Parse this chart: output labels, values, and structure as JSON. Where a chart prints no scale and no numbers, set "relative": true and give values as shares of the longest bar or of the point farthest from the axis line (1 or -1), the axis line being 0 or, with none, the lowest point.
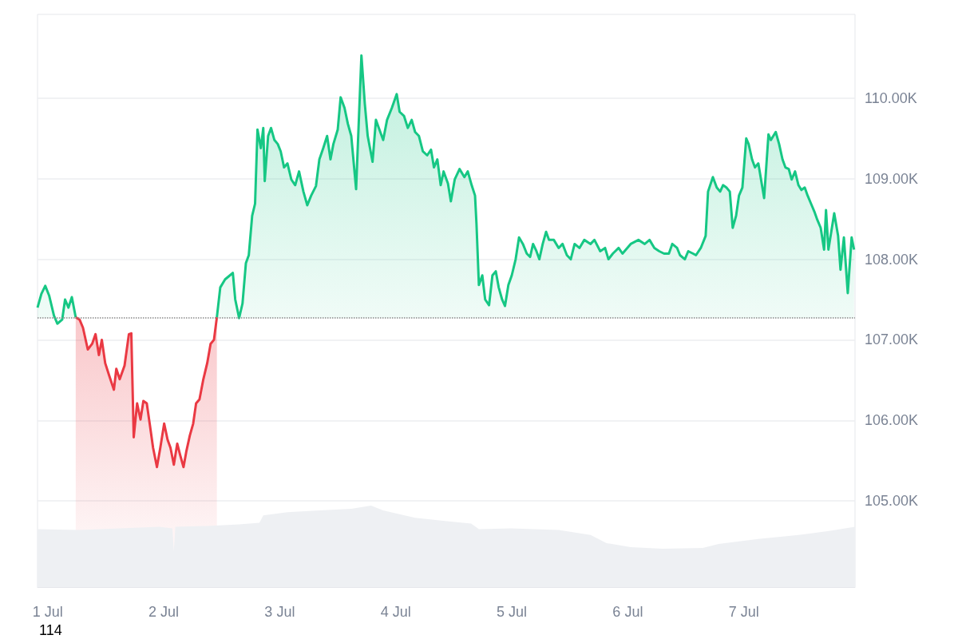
{
  "chart_data": [
    {
      "type": "area",
      "marker": "none",
      "grid": "y",
      "x": [
        "--06-30T21:54",
        "--06-30T22:42",
        "--06-30T23:30",
        "--07-01T00:18",
        "--07-01T01:18",
        "--07-01T02:00",
        "--07-01T03:00",
        "--07-01T03:36",
        "--07-01T04:18",
        "--07-01T05:00",
        "--07-01T05:48",
        "--07-01T06:36",
        "--07-01T07:18",
        "--07-01T08:18",
        "--07-01T09:12",
        "--07-01T09:54",
        "--07-01T10:36",
        "--07-01T11:12",
        "--07-01T11:54",
        "--07-01T12:42",
        "--07-01T13:42",
        "--07-01T14:12",
        "--07-01T14:54",
        "--07-01T15:54",
        "--07-01T16:48",
        "--07-01T17:18",
        "--07-01T17:48",
        "--07-01T18:30",
        "--07-01T19:12",
        "--07-01T19:48",
        "--07-01T20:30",
        "--07-01T21:06",
        "--07-01T21:48",
        "--07-01T22:36",
        "--07-01T23:18",
        "--07-02T00:06",
        "--07-02T00:48",
        "--07-02T01:24",
        "--07-02T02:06",
        "--07-02T02:48",
        "--07-02T03:24",
        "--07-02T04:06",
        "--07-02T04:42",
        "--07-02T05:24",
        "--07-02T06:06",
        "--07-02T06:42",
        "--07-02T07:24",
        "--07-02T08:12",
        "--07-02T09:00",
        "--07-02T09:42",
        "--07-02T10:24",
        "--07-02T11:00",
        "--07-02T11:42",
        "--07-02T12:42",
        "--07-02T13:30",
        "--07-02T14:18",
        "--07-02T14:48",
        "--07-02T15:36",
        "--07-02T16:18",
        "--07-02T17:00",
        "--07-02T17:36",
        "--07-02T18:18",
        "--07-02T18:54",
        "--07-02T19:24",
        "--07-02T20:06",
        "--07-02T20:36",
        "--07-02T20:54",
        "--07-02T21:36",
        "--07-02T22:12",
        "--07-02T22:54",
        "--07-02T23:36",
        "--07-03T00:12",
        "--07-03T00:54",
        "--07-03T01:36",
        "--07-03T02:24",
        "--07-03T03:12",
        "--07-03T04:00",
        "--07-03T04:54",
        "--07-03T05:42",
        "--07-03T06:30",
        "--07-03T07:30",
        "--07-03T08:12",
        "--07-03T09:00",
        "--07-03T09:48",
        "--07-03T10:30",
        "--07-03T11:06",
        "--07-03T12:00",
        "--07-03T12:36",
        "--07-03T13:24",
        "--07-03T14:06",
        "--07-03T14:48",
        "--07-03T15:48",
        "--07-03T16:24",
        "--07-03T16:54",
        "--07-03T17:36",
        "--07-03T18:12",
        "--07-03T19:12",
        "--07-03T19:54",
        "--07-03T20:30",
        "--07-03T21:24",
        "--07-03T22:12",
        "--07-03T23:12",
        "--07-04T00:12",
        "--07-04T00:48",
        "--07-04T01:42",
        "--07-04T02:30",
        "--07-04T03:18",
        "--07-04T04:00",
        "--07-04T04:48",
        "--07-04T05:36",
        "--07-04T06:30",
        "--07-04T07:18",
        "--07-04T07:54",
        "--07-04T08:36",
        "--07-04T09:18",
        "--07-04T09:54",
        "--07-04T10:48",
        "--07-04T11:24",
        "--07-04T12:12",
        "--07-04T13:12",
        "--07-04T14:12",
        "--07-04T14:54",
        "--07-04T15:42",
        "--07-04T16:24",
        "--07-04T16:42",
        "--07-04T17:12",
        "--07-04T17:54",
        "--07-04T18:30",
        "--07-04T19:18",
        "--07-04T20:00",
        "--07-04T20:42",
        "--07-04T21:18",
        "--07-04T22:00",
        "--07-04T22:36",
        "--07-04T23:18",
        "--07-05T00:00",
        "--07-05T00:48",
        "--07-05T01:30",
        "--07-05T02:18",
        "--07-05T03:06",
        "--07-05T03:48",
        "--07-05T04:24",
        "--07-05T05:06",
        "--07-05T05:42",
        "--07-05T06:24",
        "--07-05T07:06",
        "--07-05T07:42",
        "--07-05T08:42",
        "--07-05T09:42",
        "--07-05T10:30",
        "--07-05T11:24",
        "--07-05T12:12",
        "--07-05T13:00",
        "--07-05T14:00",
        "--07-05T15:00",
        "--07-05T16:18",
        "--07-05T17:06",
        "--07-05T18:18",
        "--07-05T19:18",
        "--07-05T20:00",
        "--07-05T20:54",
        "--07-05T22:06",
        "--07-05T22:54",
        "--07-06T00:36",
        "--07-06T02:12",
        "--07-06T03:30",
        "--07-06T04:30",
        "--07-06T05:30",
        "--07-06T06:30",
        "--07-06T07:30",
        "--07-06T08:30",
        "--07-06T09:12",
        "--07-06T10:12",
        "--07-06T10:48",
        "--07-06T11:48",
        "--07-06T12:30",
        "--07-06T13:30",
        "--07-06T14:06",
        "--07-06T15:06",
        "--07-06T16:06",
        "--07-06T16:36",
        "--07-06T17:36",
        "--07-06T18:24",
        "--07-06T19:06",
        "--07-06T19:42",
        "--07-06T20:24",
        "--07-06T21:06",
        "--07-06T21:42",
        "--07-06T22:24",
        "--07-06T23:00",
        "--07-06T23:42",
        "--07-07T00:30",
        "--07-07T01:00",
        "--07-07T01:42",
        "--07-07T02:18",
        "--07-07T03:00",
        "--07-07T04:12",
        "--07-07T05:06",
        "--07-07T05:36",
        "--07-07T06:36",
        "--07-07T07:18",
        "--07-07T08:00",
        "--07-07T08:36",
        "--07-07T09:18",
        "--07-07T09:54",
        "--07-07T10:36",
        "--07-07T11:18",
        "--07-07T11:54",
        "--07-07T12:36",
        "--07-07T13:12",
        "--07-07T13:54",
        "--07-07T14:36",
        "--07-07T15:12",
        "--07-07T15:54",
        "--07-07T16:36",
        "--07-07T17:00",
        "--07-07T17:30",
        "--07-07T18:42",
        "--07-07T19:30",
        "--07-07T20:00",
        "--07-07T20:42",
        "--07-07T21:30",
        "--07-07T22:18",
        "--07-07T22:48"
      ],
      "series": [
        {
          "color": "#16c784",
          "values": [
            107.4,
            107.57,
            107.67,
            107.55,
            107.3,
            107.2,
            107.25,
            107.5,
            107.4,
            107.53,
            107.28,
            null,
            null,
            null,
            null,
            null,
            null,
            null,
            null,
            null,
            null,
            null,
            null,
            null,
            null,
            null,
            null,
            null,
            null,
            null,
            null,
            null,
            null,
            null,
            null,
            null,
            null,
            null,
            null,
            null,
            null,
            null,
            null,
            null,
            null,
            null,
            null,
            null,
            null,
            null,
            null,
            107.28,
            107.65,
            107.75,
            107.79,
            107.83,
            107.5,
            107.27,
            107.45,
            107.95,
            108.05,
            108.54,
            108.69,
            109.61,
            109.38,
            109.63,
            108.97,
            109.53,
            109.63,
            109.48,
            109.43,
            109.34,
            109.14,
            109.19,
            108.99,
            108.92,
            109.09,
            108.84,
            108.67,
            108.79,
            108.91,
            109.24,
            109.38,
            109.53,
            109.24,
            109.43,
            109.61,
            110.01,
            109.88,
            109.68,
            109.53,
            108.87,
            109.78,
            110.53,
            109.93,
            109.53,
            109.21,
            109.73,
            109.63,
            109.48,
            109.73,
            109.88,
            110.05,
            109.83,
            109.78,
            109.63,
            109.73,
            109.58,
            109.53,
            109.34,
            109.29,
            109.36,
            109.14,
            109.24,
            108.92,
            109.09,
            108.94,
            108.72,
            108.99,
            109.12,
            109.02,
            109.09,
            108.92,
            108.79,
            108.44,
            107.68,
            107.8,
            107.5,
            107.43,
            107.8,
            107.85,
            107.65,
            107.5,
            107.42,
            107.68,
            107.8,
            108.0,
            108.27,
            108.19,
            108.07,
            108.03,
            108.19,
            108.1,
            108.0,
            108.19,
            108.34,
            108.24,
            108.24,
            108.14,
            108.19,
            108.05,
            108.0,
            108.19,
            108.14,
            108.24,
            108.19,
            108.24,
            108.1,
            108.14,
            108.0,
            108.07,
            108.14,
            108.07,
            108.19,
            108.24,
            108.19,
            108.24,
            108.14,
            108.1,
            108.07,
            108.07,
            108.19,
            108.14,
            108.05,
            108.0,
            108.1,
            108.07,
            108.05,
            108.14,
            108.29,
            108.84,
            109.02,
            108.89,
            108.84,
            108.92,
            108.89,
            108.84,
            108.39,
            108.54,
            108.79,
            108.89,
            109.5,
            109.43,
            109.24,
            109.14,
            109.19,
            108.76,
            109.55,
            109.48,
            109.58,
            109.43,
            109.24,
            109.14,
            109.12,
            108.99,
            109.09,
            108.92,
            108.86,
            108.89,
            108.79,
            108.69,
            108.59,
            108.49,
            108.39,
            108.12,
            108.61,
            108.12,
            108.57,
            108.29,
            107.87,
            108.27,
            107.58,
            108.27,
            108.12
          ]
        },
        {
          "color": "#ea3943",
          "values": [
            null,
            null,
            null,
            null,
            null,
            null,
            null,
            null,
            null,
            null,
            107.28,
            107.25,
            107.15,
            106.88,
            106.95,
            107.07,
            106.81,
            107.0,
            106.71,
            106.56,
            106.38,
            106.64,
            106.51,
            106.68,
            107.07,
            107.08,
            105.79,
            106.21,
            106.01,
            106.24,
            106.21,
            105.96,
            105.66,
            105.42,
            105.66,
            105.96,
            105.76,
            105.66,
            105.45,
            105.71,
            105.57,
            105.42,
            105.62,
            105.81,
            105.96,
            106.21,
            106.26,
            106.51,
            106.71,
            106.95,
            107.0,
            107.28,
            null,
            null,
            null,
            null,
            null,
            null,
            null,
            null,
            null,
            null,
            null,
            null,
            null,
            null,
            null,
            null,
            null,
            null,
            null,
            null,
            null,
            null,
            null,
            null,
            null,
            null,
            null,
            null,
            null,
            null,
            null,
            null,
            null,
            null,
            null,
            null,
            null,
            null,
            null,
            null,
            null,
            null,
            null,
            null,
            null,
            null,
            null,
            null,
            null,
            null,
            null,
            null,
            null,
            null,
            null,
            null,
            null,
            null,
            null,
            null,
            null,
            null,
            null,
            null,
            null,
            null,
            null,
            null,
            null,
            null,
            null,
            null,
            null,
            null,
            null,
            null,
            null,
            null,
            null,
            null,
            null,
            null,
            null,
            null,
            null,
            null,
            null,
            null,
            null,
            null,
            null,
            null,
            null,
            null,
            null,
            null,
            null,
            null,
            null,
            null,
            null,
            null,
            null,
            null,
            null,
            null,
            null,
            null,
            null,
            null,
            null,
            null,
            null,
            null,
            null,
            null,
            null,
            null,
            null,
            null,
            null,
            null,
            null,
            null,
            null,
            null,
            null,
            null,
            null,
            null,
            null,
            null,
            null,
            null,
            null,
            null,
            null,
            null,
            null,
            null,
            null,
            null,
            null,
            null,
            null,
            null,
            null,
            null,
            null,
            null,
            null,
            null,
            null,
            null,
            null,
            null,
            null,
            null,
            null,
            null,
            null,
            null,
            null,
            null,
            null,
            null,
            null,
            null,
            null,
            null,
            null,
            null
          ]
        }
      ],
      "xlim": [
        "--06-30T21:54",
        "--07-07T23:00"
      ],
      "xticks": [
        {
          "value": "--07-01",
          "label": "1 Jul"
        },
        {
          "value": "--07-02",
          "label": "2 Jul"
        },
        {
          "value": "--07-03",
          "label": "3 Jul"
        },
        {
          "value": "--07-04",
          "label": "4 Jul"
        },
        {
          "value": "--07-05",
          "label": "5 Jul"
        },
        {
          "value": "--07-06",
          "label": "6 Jul"
        },
        {
          "value": "--07-07",
          "label": "7 Jul"
        }
      ],
      "ylim": [
        103.93,
        111.04
      ],
      "yticks": [
        {
          "value": 105,
          "label": "105.00K"
        },
        {
          "value": 106,
          "label": "106.00K"
        },
        {
          "value": 107,
          "label": "107.00K"
        },
        {
          "value": 108,
          "label": "108.00K"
        },
        {
          "value": 109,
          "label": "109.00K"
        },
        {
          "value": 110,
          "label": "110.00K"
        }
      ],
      "ref_lines": [
        {
          "axis": "y",
          "value": 107.27,
          "color": "#888888",
          "line_style": "dotted"
        }
      ],
      "annotations": [
        "114"
      ]
    },
    {
      "type": "area",
      "relative": true,
      "marker": "none",
      "grid": false,
      "x": [
        "--06-30T21:54",
        "--07-01T06:36",
        "--07-01T14:54",
        "--07-01T23:06",
        "--07-02T01:48",
        "--07-02T02:06",
        "--07-02T02:24",
        "--07-02T09:00",
        "--07-02T15:36",
        "--07-02T19:48",
        "--07-02T20:36",
        "--07-03T01:36",
        "--07-03T08:12",
        "--07-03T14:48",
        "--07-03T18:54",
        "--07-03T21:24",
        "--07-04T04:00",
        "--07-04T10:36",
        "--07-04T15:36",
        "--07-04T17:12",
        "--07-04T23:48",
        "--07-05T09:42",
        "--07-05T16:18",
        "--07-05T19:36",
        "--07-06T00:36",
        "--07-06T07:12",
        "--07-06T15:30",
        "--07-06T18:48",
        "--07-07T03:00",
        "--07-07T11:18",
        "--07-07T17:54",
        "--07-07T23:00"
      ],
      "xlim": [
        "--06-30T21:54",
        "--07-07T23:00"
      ],
      "series": [
        {
          "color": "#eef0f3",
          "values": [
            0.71,
            0.7,
            0.72,
            0.74,
            0.72,
            0.44,
            0.74,
            0.75,
            0.77,
            0.79,
            0.88,
            0.92,
            0.94,
            0.96,
            1,
            0.94,
            0.85,
            0.81,
            0.78,
            0.71,
            0.72,
            0.7,
            0.64,
            0.54,
            0.49,
            0.47,
            0.48,
            0.53,
            0.59,
            0.64,
            0.69,
            0.74
          ]
        }
      ]
    }
  ]
}
